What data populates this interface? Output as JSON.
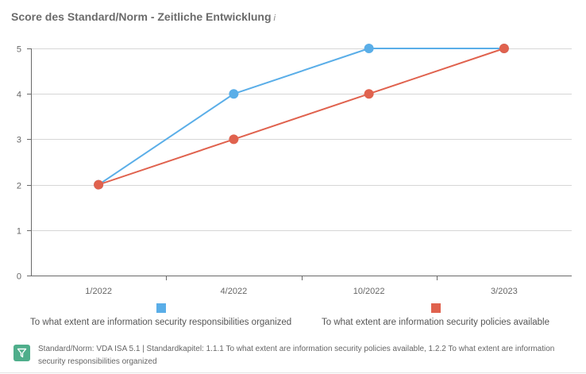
{
  "chart_data": {
    "type": "line",
    "title": "Score des Standard/Norm - Zeitliche Entwicklung",
    "title_info_marker": "i",
    "categories": [
      "1/2022",
      "4/2022",
      "10/2022",
      "3/2023"
    ],
    "series": [
      {
        "name": "To what extent are information security responsibilities organized",
        "color": "#5aaee8",
        "values": [
          2,
          4,
          5,
          5
        ]
      },
      {
        "name": "To what extent are information security policies available",
        "color": "#e0624e",
        "values": [
          2,
          3,
          4,
          5
        ]
      }
    ],
    "xlabel": "",
    "ylabel": "",
    "ylim": [
      0,
      5
    ],
    "yticks": [
      "0",
      "1",
      "2",
      "3",
      "4",
      "5"
    ],
    "grid": true,
    "legend_position": "bottom"
  },
  "footer": {
    "filter_icon": "filter-icon",
    "text": "Standard/Norm: VDA ISA 5.1 | Standardkapitel: 1.1.1 To what extent are information security policies available, 1.2.2 To what extent are information security responsibilities organized"
  }
}
